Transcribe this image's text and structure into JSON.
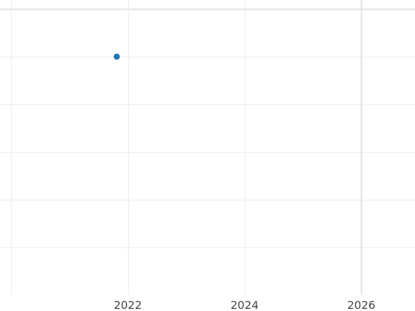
{
  "chart_data": {
    "type": "scatter",
    "title": "",
    "xlabel": "",
    "ylabel": "",
    "xlim": [
      2019.81,
      2026.92
    ],
    "ylim": [
      0,
      6
    ],
    "x_ticks": [
      2022,
      2024,
      2026
    ],
    "x_tick_labels": [
      "2022",
      "2024",
      "2026"
    ],
    "x_gridlines": [
      2020,
      2022,
      2024,
      2026
    ],
    "y_gridlines": [
      1,
      2,
      3,
      4,
      5,
      6
    ],
    "grid": true,
    "series": [
      {
        "x": [
          2021.81
        ],
        "y": [
          5.0
        ],
        "color": "#1f77b4"
      }
    ]
  }
}
